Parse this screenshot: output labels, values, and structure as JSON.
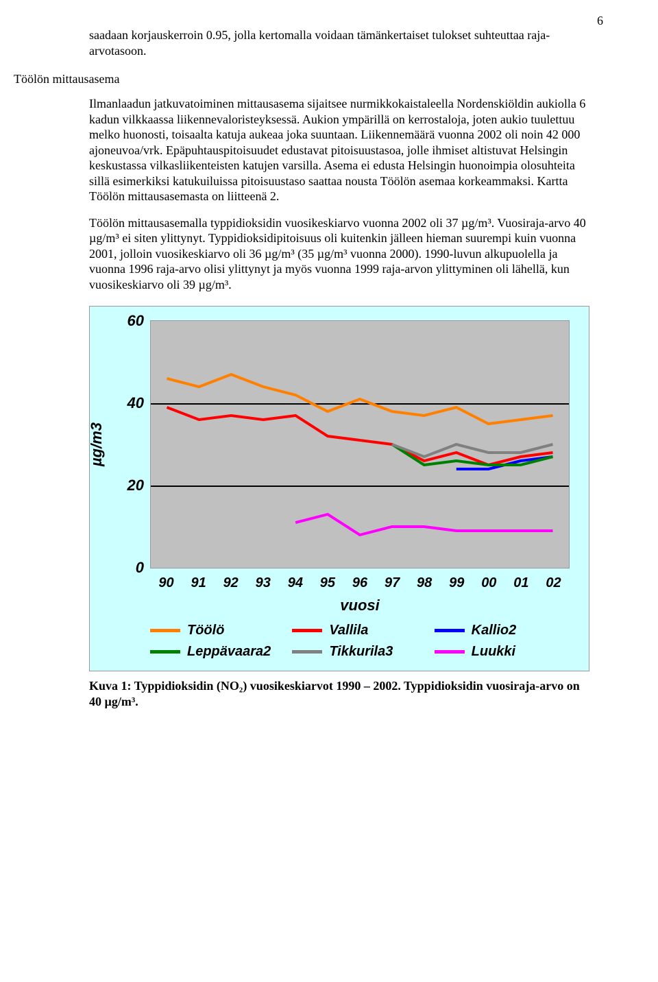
{
  "page_number": "6",
  "para_intro": "saadaan korjauskerroin 0.95, jolla kertomalla voidaan tämänkertaiset tulokset suhteuttaa raja-arvotasoon.",
  "section_heading": "Töölön mittausasema",
  "para_main1": "Ilmanlaadun jatkuvatoiminen mittausasema sijaitsee nurmikkokaistaleella Nordenskiöldin aukiolla 6 kadun vilkkaassa liikennevaloristeyksessä. Aukion ympärillä on kerrostaloja, joten aukio tuulettuu melko huonosti, toisaalta katuja aukeaa joka suuntaan. Liikennemäärä vuonna 2002 oli noin 42 000 ajoneuvoa/vrk. Epäpuhtauspitoisuudet edustavat pitoisuustasoa, jolle ihmiset altistuvat Helsingin keskustassa vilkasliikenteisten katujen varsilla. Asema ei edusta Helsingin huonoimpia olosuhteita sillä esimerkiksi katukuiluissa pitoisuustaso saattaa nousta Töölön asemaa korkeammaksi. Kartta Töölön mittausasemasta on liitteenä 2.",
  "para_main2": "Töölön mittausasemalla typpidioksidin vuosikeskiarvo vuonna 2002 oli 37 µg/m³. Vuosiraja-arvo 40 µg/m³ ei siten ylittynyt. Typpidioksidipitoisuus oli kuitenkin jälleen hieman suurempi kuin vuonna 2001, jolloin vuosikeskiarvo oli 36 µg/m³ (35 µg/m³ vuonna 2000). 1990-luvun alkupuolella ja vuonna 1996 raja-arvo olisi ylittynyt ja myös vuonna 1999 raja-arvon ylittyminen oli lähellä, kun vuosikeskiarvo oli 39 µg/m³.",
  "chart": {
    "type": "line",
    "background_color": "#ccffff",
    "plot_background": "#c0c0c0",
    "grid_color": "#000000",
    "ylabel": "µg/m3",
    "xlabel": "vuosi",
    "ymin": 0,
    "ymax": 60,
    "yticks": [
      0,
      20,
      40,
      60
    ],
    "x_categories": [
      "90",
      "91",
      "92",
      "93",
      "94",
      "95",
      "96",
      "97",
      "98",
      "99",
      "00",
      "01",
      "02"
    ],
    "line_width": 4,
    "series": [
      {
        "name": "Töölö",
        "color": "#ff8000",
        "values": [
          46,
          44,
          47,
          44,
          42,
          38,
          41,
          38,
          37,
          39,
          35,
          36,
          37
        ]
      },
      {
        "name": "Vallila",
        "color": "#ff0000",
        "values": [
          39,
          36,
          37,
          36,
          37,
          32,
          31,
          30,
          26,
          28,
          25,
          27,
          28
        ]
      },
      {
        "name": "Kallio2",
        "color": "#0000ff",
        "values": [
          null,
          null,
          null,
          null,
          null,
          null,
          null,
          null,
          null,
          24,
          24,
          26,
          27
        ]
      },
      {
        "name": "Leppävaara2",
        "color": "#008000",
        "values": [
          null,
          null,
          null,
          null,
          null,
          null,
          null,
          30,
          25,
          26,
          25,
          25,
          27
        ]
      },
      {
        "name": "Tikkurila3",
        "color": "#808080",
        "values": [
          null,
          null,
          null,
          null,
          null,
          null,
          null,
          30,
          27,
          30,
          28,
          28,
          30
        ]
      },
      {
        "name": "Luukki",
        "color": "#ff00ff",
        "values": [
          null,
          null,
          null,
          null,
          11,
          13,
          8,
          10,
          10,
          9,
          9,
          9,
          9
        ]
      }
    ]
  },
  "caption": "Kuva 1: Typpidioksidin (NO₂) vuosikeskiarvot 1990 – 2002. Typpidioksidin vuosiraja-arvo on 40 µg/m³."
}
